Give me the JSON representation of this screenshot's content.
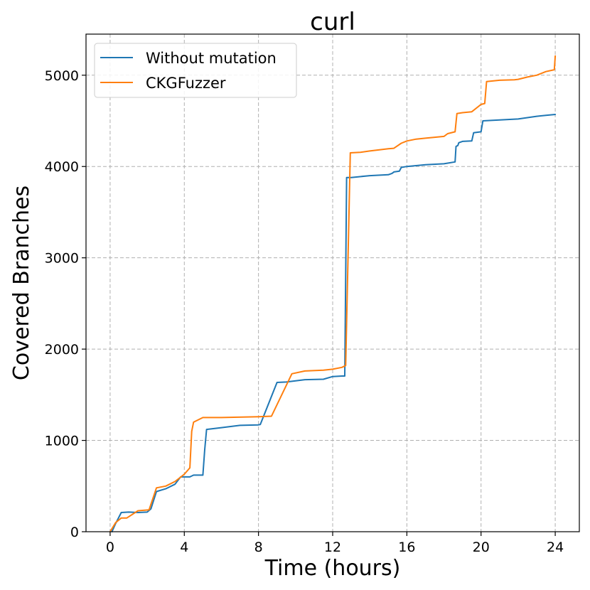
{
  "chart_data": {
    "type": "line",
    "title": "curl",
    "xlabel": "Time (hours)",
    "ylabel": "Covered Branches",
    "xlim": [
      -1.3,
      25.3
    ],
    "ylim": [
      0,
      5450
    ],
    "xticks": [
      0,
      4,
      8,
      12,
      16,
      20,
      24
    ],
    "yticks": [
      0,
      1000,
      2000,
      3000,
      4000,
      5000
    ],
    "grid": true,
    "legend": "top-left",
    "series": [
      {
        "name": "Without mutation",
        "color": "#1f77b4",
        "x": [
          0.1,
          0.3,
          0.6,
          1.0,
          1.5,
          2.0,
          2.2,
          2.5,
          3.0,
          3.5,
          3.8,
          4.1,
          4.3,
          4.5,
          5.0,
          5.1,
          5.2,
          6.0,
          7.0,
          8.0,
          8.1,
          9.0,
          9.5,
          10.5,
          11.5,
          12.0,
          12.5,
          12.65,
          12.75,
          13.0,
          14.0,
          15.0,
          15.2,
          15.3,
          15.6,
          15.7,
          16.0,
          17.0,
          18.0,
          18.6,
          18.65,
          18.75,
          18.8,
          19.0,
          19.5,
          19.6,
          20.0,
          20.1,
          21.0,
          22.0,
          22.5,
          23.0,
          23.5,
          24.0
        ],
        "y": [
          0,
          90,
          210,
          215,
          210,
          215,
          250,
          440,
          470,
          520,
          600,
          600,
          600,
          620,
          620,
          900,
          1120,
          1140,
          1165,
          1170,
          1175,
          1635,
          1640,
          1665,
          1670,
          1700,
          1705,
          1705,
          3880,
          3880,
          3900,
          3910,
          3925,
          3940,
          3950,
          3990,
          4000,
          4020,
          4030,
          4050,
          4220,
          4230,
          4260,
          4275,
          4280,
          4370,
          4380,
          4500,
          4510,
          4520,
          4535,
          4550,
          4560,
          4570
        ]
      },
      {
        "name": "CKGFuzzer",
        "color": "#ff7f0e",
        "x": [
          0.0,
          0.3,
          0.6,
          0.9,
          1.5,
          2.1,
          2.5,
          3.0,
          3.5,
          4.0,
          4.3,
          4.4,
          4.5,
          5.0,
          6.0,
          8.0,
          8.7,
          9.8,
          10.5,
          11.5,
          12.0,
          12.5,
          12.7,
          12.95,
          13.5,
          14.0,
          15.0,
          15.3,
          15.7,
          16.0,
          16.5,
          17.0,
          18.0,
          18.2,
          18.6,
          18.7,
          19.0,
          19.5,
          20.0,
          20.2,
          20.3,
          21.0,
          21.8,
          22.0,
          22.5,
          23.0,
          23.5,
          23.95,
          24.0
        ],
        "y": [
          0,
          100,
          150,
          150,
          230,
          240,
          480,
          500,
          550,
          630,
          700,
          1100,
          1200,
          1250,
          1250,
          1260,
          1265,
          1730,
          1760,
          1770,
          1780,
          1800,
          1820,
          4150,
          4155,
          4170,
          4195,
          4200,
          4255,
          4280,
          4300,
          4310,
          4330,
          4360,
          4380,
          4580,
          4590,
          4600,
          4680,
          4690,
          4930,
          4945,
          4950,
          4955,
          4980,
          5000,
          5040,
          5060,
          5210
        ]
      }
    ]
  }
}
